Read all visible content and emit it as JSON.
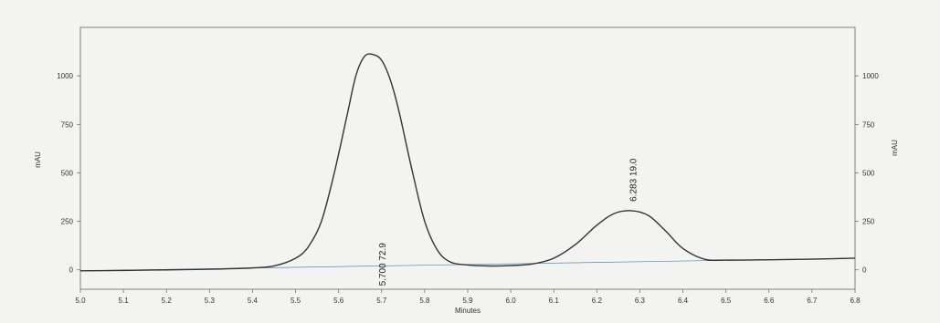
{
  "chart_data": {
    "type": "line",
    "xlabel": "Minutes",
    "ylabel_left": "mAU",
    "ylabel_right": "mAU",
    "xlim": [
      5.0,
      6.8
    ],
    "left_axis": {
      "ylim": [
        -100,
        1250
      ],
      "ticks": [
        0,
        250,
        500,
        750,
        1000
      ]
    },
    "right_axis": {
      "ylim": [
        -100,
        1250
      ],
      "ticks": [
        0,
        250,
        500,
        750,
        1000
      ]
    },
    "x_ticks": [
      5.0,
      5.1,
      5.2,
      5.3,
      5.4,
      5.5,
      5.6,
      5.7,
      5.8,
      5.9,
      6.0,
      6.1,
      6.2,
      6.3,
      6.4,
      6.5,
      6.6,
      6.7,
      6.8
    ],
    "series": [
      {
        "color": "#333333",
        "x": [
          5.0,
          5.1,
          5.2,
          5.3,
          5.4,
          5.45,
          5.5,
          5.53,
          5.56,
          5.59,
          5.62,
          5.64,
          5.66,
          5.68,
          5.7,
          5.72,
          5.74,
          5.77,
          5.8,
          5.83,
          5.86,
          5.9,
          5.95,
          6.0,
          6.05,
          6.1,
          6.15,
          6.2,
          6.24,
          6.28,
          6.32,
          6.36,
          6.4,
          6.45,
          6.5,
          6.6,
          6.7,
          6.8
        ],
        "y": [
          -5,
          -3,
          0,
          3,
          10,
          20,
          60,
          120,
          250,
          500,
          800,
          1000,
          1100,
          1110,
          1080,
          980,
          820,
          520,
          250,
          100,
          40,
          25,
          20,
          22,
          30,
          60,
          130,
          230,
          290,
          305,
          280,
          200,
          110,
          55,
          50,
          52,
          55,
          60
        ]
      }
    ],
    "baseline": {
      "x": [
        5.0,
        6.8
      ],
      "y": [
        -5,
        60
      ],
      "color": "#5a8ab0"
    },
    "peak_labels": [
      {
        "x": 5.7,
        "text": "5.700 72.9"
      },
      {
        "x": 6.283,
        "text": "6.283 19.0"
      }
    ],
    "grid": false
  }
}
